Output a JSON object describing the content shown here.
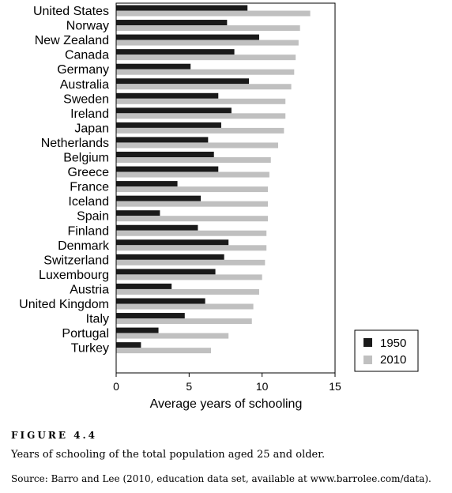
{
  "figure": {
    "label": "FIGURE 4.4",
    "caption": "Years of schooling of the total population aged 25 and older.",
    "source": "Source: Barro and Lee (2010, education data set, available at www.barrolee.com/data)."
  },
  "chart_data": {
    "type": "bar",
    "orientation": "horizontal",
    "title": "",
    "xlabel": "Average years of schooling",
    "ylabel": "",
    "xlim": [
      0,
      15
    ],
    "xticks": [
      0,
      5,
      10,
      15
    ],
    "grid": false,
    "legend_position": "bottom-right",
    "categories": [
      "United States",
      "Norway",
      "New Zealand",
      "Canada",
      "Germany",
      "Australia",
      "Sweden",
      "Ireland",
      "Japan",
      "Netherlands",
      "Belgium",
      "Greece",
      "France",
      "Iceland",
      "Spain",
      "Finland",
      "Denmark",
      "Switzerland",
      "Luxembourg",
      "Austria",
      "United Kingdom",
      "Italy",
      "Portugal",
      "Turkey"
    ],
    "series": [
      {
        "name": "1950",
        "color": "#1a1a1a",
        "values": [
          9.0,
          7.6,
          9.8,
          8.1,
          5.1,
          9.1,
          7.0,
          7.9,
          7.2,
          6.3,
          6.7,
          7.0,
          4.2,
          5.8,
          3.0,
          5.6,
          7.7,
          7.4,
          6.8,
          3.8,
          6.1,
          4.7,
          2.9,
          1.7
        ]
      },
      {
        "name": "2010",
        "color": "#c0c0c0",
        "values": [
          13.3,
          12.6,
          12.5,
          12.3,
          12.2,
          12.0,
          11.6,
          11.6,
          11.5,
          11.1,
          10.6,
          10.5,
          10.4,
          10.4,
          10.4,
          10.3,
          10.3,
          10.2,
          10.0,
          9.8,
          9.4,
          9.3,
          7.7,
          6.5
        ]
      }
    ]
  }
}
